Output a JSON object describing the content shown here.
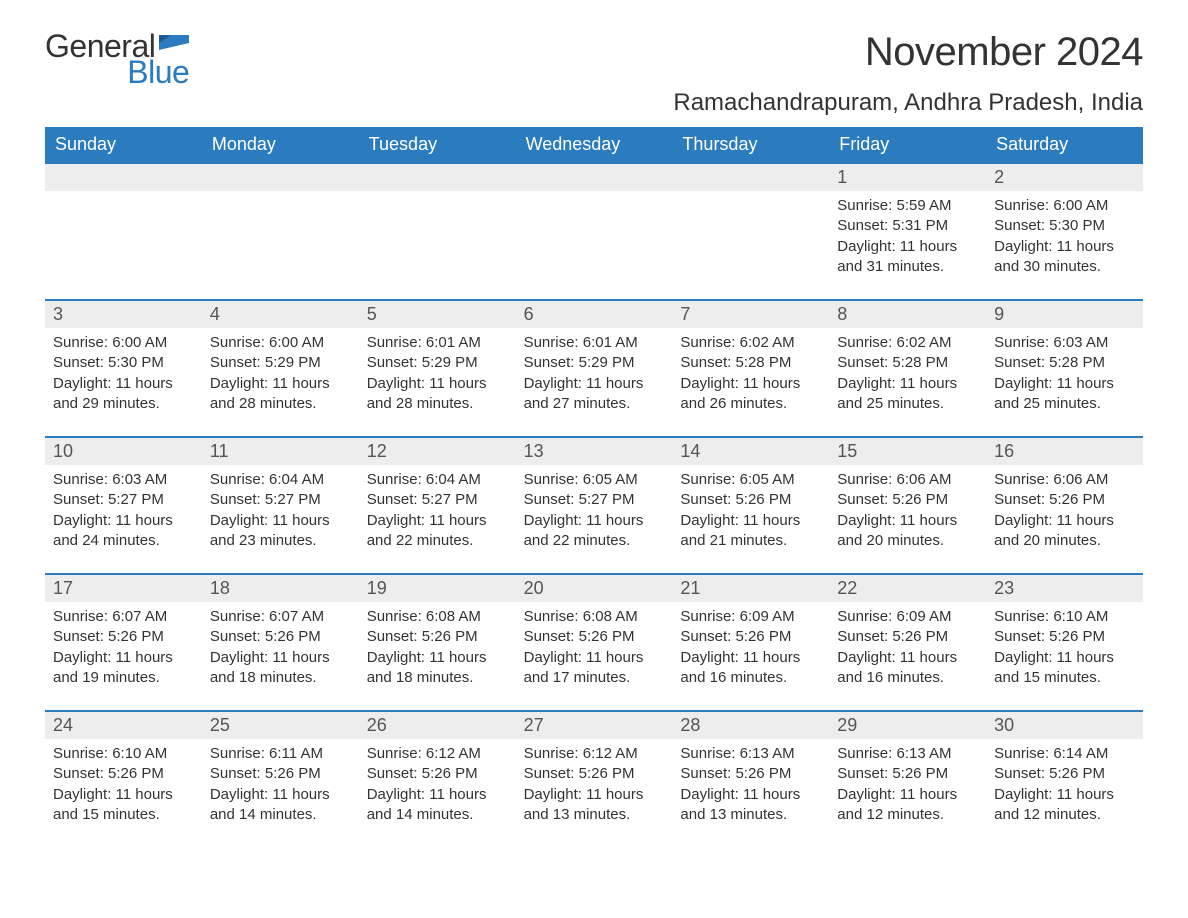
{
  "logo": {
    "text_general": "General",
    "text_blue": "Blue",
    "flag_color": "#2b7bbf"
  },
  "title": "November 2024",
  "location": "Ramachandrapuram, Andhra Pradesh, India",
  "colors": {
    "header_bg": "#2b7bbf",
    "header_text": "#ffffff",
    "row_border": "#2b7bbf",
    "daynum_bg": "#ededed",
    "body_text": "#333333"
  },
  "day_names": [
    "Sunday",
    "Monday",
    "Tuesday",
    "Wednesday",
    "Thursday",
    "Friday",
    "Saturday"
  ],
  "weeks": [
    [
      null,
      null,
      null,
      null,
      null,
      {
        "n": "1",
        "sunrise": "Sunrise: 5:59 AM",
        "sunset": "Sunset: 5:31 PM",
        "daylight": "Daylight: 11 hours and 31 minutes."
      },
      {
        "n": "2",
        "sunrise": "Sunrise: 6:00 AM",
        "sunset": "Sunset: 5:30 PM",
        "daylight": "Daylight: 11 hours and 30 minutes."
      }
    ],
    [
      {
        "n": "3",
        "sunrise": "Sunrise: 6:00 AM",
        "sunset": "Sunset: 5:30 PM",
        "daylight": "Daylight: 11 hours and 29 minutes."
      },
      {
        "n": "4",
        "sunrise": "Sunrise: 6:00 AM",
        "sunset": "Sunset: 5:29 PM",
        "daylight": "Daylight: 11 hours and 28 minutes."
      },
      {
        "n": "5",
        "sunrise": "Sunrise: 6:01 AM",
        "sunset": "Sunset: 5:29 PM",
        "daylight": "Daylight: 11 hours and 28 minutes."
      },
      {
        "n": "6",
        "sunrise": "Sunrise: 6:01 AM",
        "sunset": "Sunset: 5:29 PM",
        "daylight": "Daylight: 11 hours and 27 minutes."
      },
      {
        "n": "7",
        "sunrise": "Sunrise: 6:02 AM",
        "sunset": "Sunset: 5:28 PM",
        "daylight": "Daylight: 11 hours and 26 minutes."
      },
      {
        "n": "8",
        "sunrise": "Sunrise: 6:02 AM",
        "sunset": "Sunset: 5:28 PM",
        "daylight": "Daylight: 11 hours and 25 minutes."
      },
      {
        "n": "9",
        "sunrise": "Sunrise: 6:03 AM",
        "sunset": "Sunset: 5:28 PM",
        "daylight": "Daylight: 11 hours and 25 minutes."
      }
    ],
    [
      {
        "n": "10",
        "sunrise": "Sunrise: 6:03 AM",
        "sunset": "Sunset: 5:27 PM",
        "daylight": "Daylight: 11 hours and 24 minutes."
      },
      {
        "n": "11",
        "sunrise": "Sunrise: 6:04 AM",
        "sunset": "Sunset: 5:27 PM",
        "daylight": "Daylight: 11 hours and 23 minutes."
      },
      {
        "n": "12",
        "sunrise": "Sunrise: 6:04 AM",
        "sunset": "Sunset: 5:27 PM",
        "daylight": "Daylight: 11 hours and 22 minutes."
      },
      {
        "n": "13",
        "sunrise": "Sunrise: 6:05 AM",
        "sunset": "Sunset: 5:27 PM",
        "daylight": "Daylight: 11 hours and 22 minutes."
      },
      {
        "n": "14",
        "sunrise": "Sunrise: 6:05 AM",
        "sunset": "Sunset: 5:26 PM",
        "daylight": "Daylight: 11 hours and 21 minutes."
      },
      {
        "n": "15",
        "sunrise": "Sunrise: 6:06 AM",
        "sunset": "Sunset: 5:26 PM",
        "daylight": "Daylight: 11 hours and 20 minutes."
      },
      {
        "n": "16",
        "sunrise": "Sunrise: 6:06 AM",
        "sunset": "Sunset: 5:26 PM",
        "daylight": "Daylight: 11 hours and 20 minutes."
      }
    ],
    [
      {
        "n": "17",
        "sunrise": "Sunrise: 6:07 AM",
        "sunset": "Sunset: 5:26 PM",
        "daylight": "Daylight: 11 hours and 19 minutes."
      },
      {
        "n": "18",
        "sunrise": "Sunrise: 6:07 AM",
        "sunset": "Sunset: 5:26 PM",
        "daylight": "Daylight: 11 hours and 18 minutes."
      },
      {
        "n": "19",
        "sunrise": "Sunrise: 6:08 AM",
        "sunset": "Sunset: 5:26 PM",
        "daylight": "Daylight: 11 hours and 18 minutes."
      },
      {
        "n": "20",
        "sunrise": "Sunrise: 6:08 AM",
        "sunset": "Sunset: 5:26 PM",
        "daylight": "Daylight: 11 hours and 17 minutes."
      },
      {
        "n": "21",
        "sunrise": "Sunrise: 6:09 AM",
        "sunset": "Sunset: 5:26 PM",
        "daylight": "Daylight: 11 hours and 16 minutes."
      },
      {
        "n": "22",
        "sunrise": "Sunrise: 6:09 AM",
        "sunset": "Sunset: 5:26 PM",
        "daylight": "Daylight: 11 hours and 16 minutes."
      },
      {
        "n": "23",
        "sunrise": "Sunrise: 6:10 AM",
        "sunset": "Sunset: 5:26 PM",
        "daylight": "Daylight: 11 hours and 15 minutes."
      }
    ],
    [
      {
        "n": "24",
        "sunrise": "Sunrise: 6:10 AM",
        "sunset": "Sunset: 5:26 PM",
        "daylight": "Daylight: 11 hours and 15 minutes."
      },
      {
        "n": "25",
        "sunrise": "Sunrise: 6:11 AM",
        "sunset": "Sunset: 5:26 PM",
        "daylight": "Daylight: 11 hours and 14 minutes."
      },
      {
        "n": "26",
        "sunrise": "Sunrise: 6:12 AM",
        "sunset": "Sunset: 5:26 PM",
        "daylight": "Daylight: 11 hours and 14 minutes."
      },
      {
        "n": "27",
        "sunrise": "Sunrise: 6:12 AM",
        "sunset": "Sunset: 5:26 PM",
        "daylight": "Daylight: 11 hours and 13 minutes."
      },
      {
        "n": "28",
        "sunrise": "Sunrise: 6:13 AM",
        "sunset": "Sunset: 5:26 PM",
        "daylight": "Daylight: 11 hours and 13 minutes."
      },
      {
        "n": "29",
        "sunrise": "Sunrise: 6:13 AM",
        "sunset": "Sunset: 5:26 PM",
        "daylight": "Daylight: 11 hours and 12 minutes."
      },
      {
        "n": "30",
        "sunrise": "Sunrise: 6:14 AM",
        "sunset": "Sunset: 5:26 PM",
        "daylight": "Daylight: 11 hours and 12 minutes."
      }
    ]
  ]
}
